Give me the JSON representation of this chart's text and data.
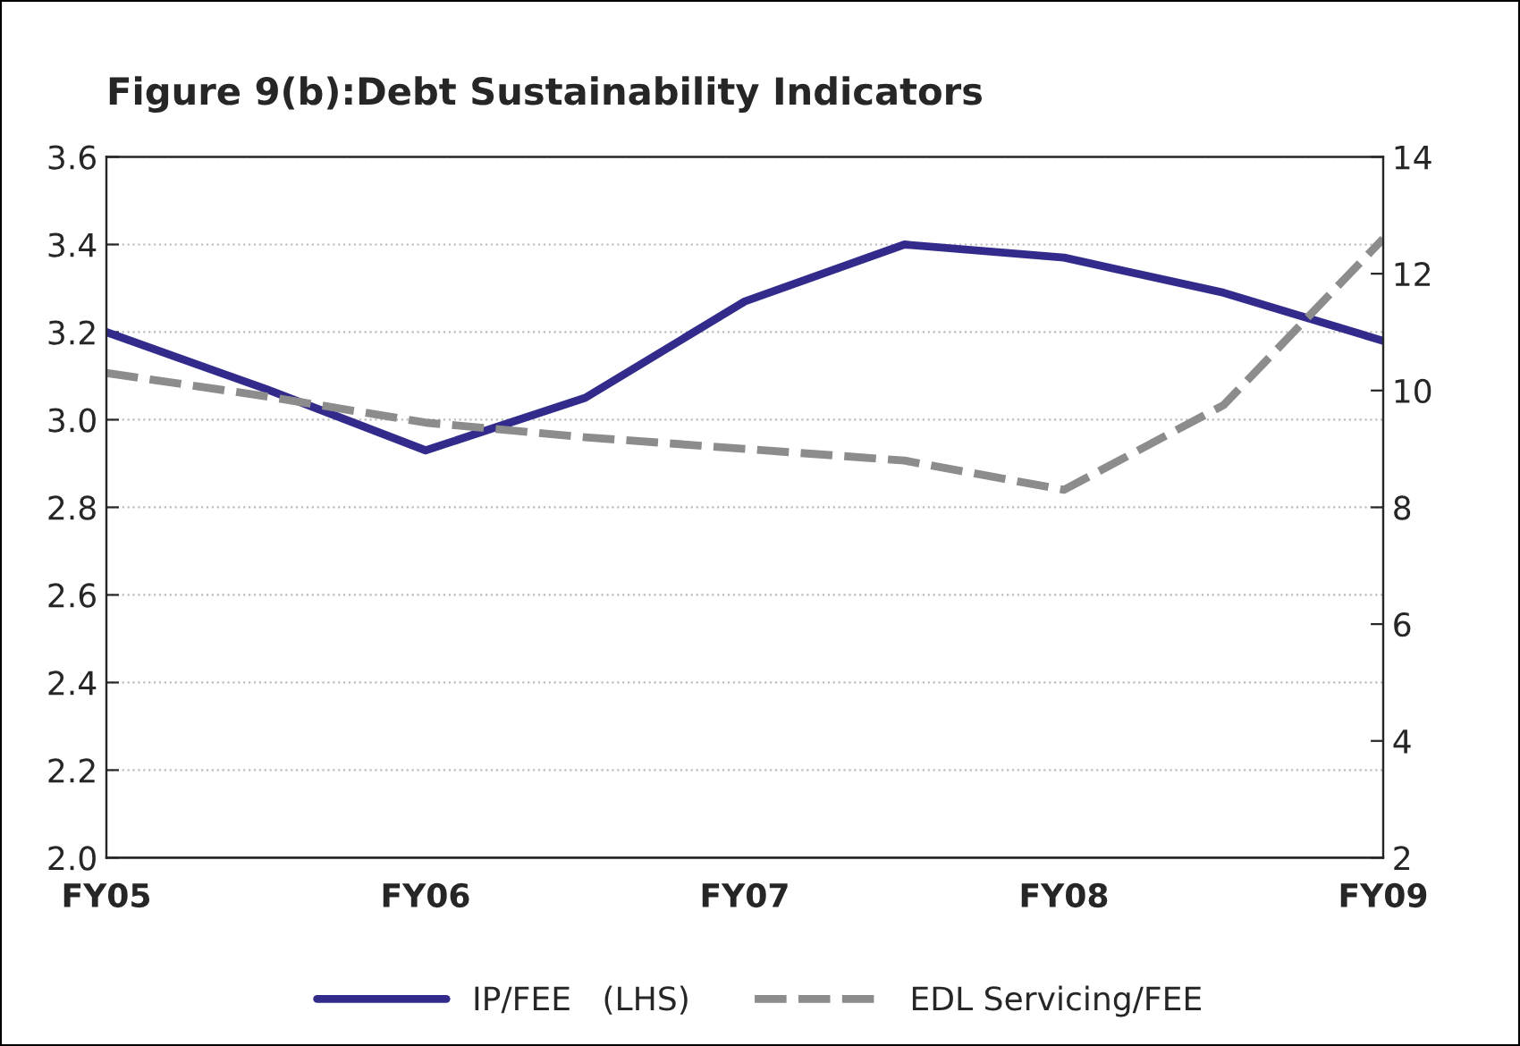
{
  "chart_data": {
    "type": "line",
    "title": "Figure 9(b):Debt Sustainability Indicators",
    "categories": [
      "FY05",
      null,
      "FY06",
      null,
      "FY07",
      null,
      "FY08",
      null,
      "FY09"
    ],
    "ylim": [
      2.0,
      3.6
    ],
    "yticks": [
      {
        "value": 2.0,
        "label": "2.0"
      },
      2.2,
      2.4,
      2.6,
      2.8,
      {
        "value": 3.0,
        "label": "3.0"
      },
      3.2,
      3.4,
      3.6
    ],
    "y2lim": [
      2,
      14
    ],
    "y2ticks": [
      2,
      4,
      6,
      8,
      10,
      12,
      14
    ],
    "grid": "y",
    "legend": "bottom",
    "series": [
      {
        "name": "IP/FEE   (LHS)",
        "color": "#332b8c",
        "line_style": "solid",
        "values": [
          3.2,
          3.07,
          2.93,
          3.05,
          3.27,
          3.4,
          3.37,
          3.29,
          3.18
        ]
      },
      {
        "name": "EDL Servicing/FEE",
        "color": "#8c8c8c",
        "line_style": "dashed",
        "axis": "y2",
        "values": [
          10.3,
          9.9,
          9.45,
          9.2,
          9.0,
          8.8,
          8.3,
          9.75,
          12.6
        ]
      }
    ]
  }
}
